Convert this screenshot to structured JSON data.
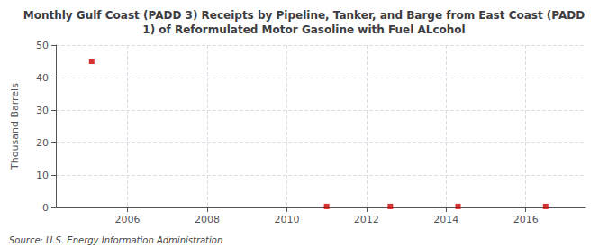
{
  "chart_data": {
    "type": "scatter",
    "title": "Monthly Gulf Coast (PADD 3) Receipts by Pipeline, Tanker, and Barge from East Coast (PADD\n1) of Reformulated Motor Gasoline with Fuel ALcohol",
    "ylabel": "Thousand Barrels",
    "source": "Source: U.S. Energy Information Administration",
    "x": [
      2005.1,
      2011.0,
      2012.6,
      2014.3,
      2016.5
    ],
    "values": [
      45,
      0.3,
      0.3,
      0.3,
      0.3
    ],
    "color": "#cc0000",
    "marker": "square",
    "xlim": [
      2004.2,
      2017.5
    ],
    "ylim": [
      0,
      50
    ],
    "xticks": [
      2006,
      2008,
      2010,
      2012,
      2014,
      2016
    ],
    "yticks": [
      0,
      10,
      20,
      30,
      40,
      50
    ],
    "grid": true
  }
}
